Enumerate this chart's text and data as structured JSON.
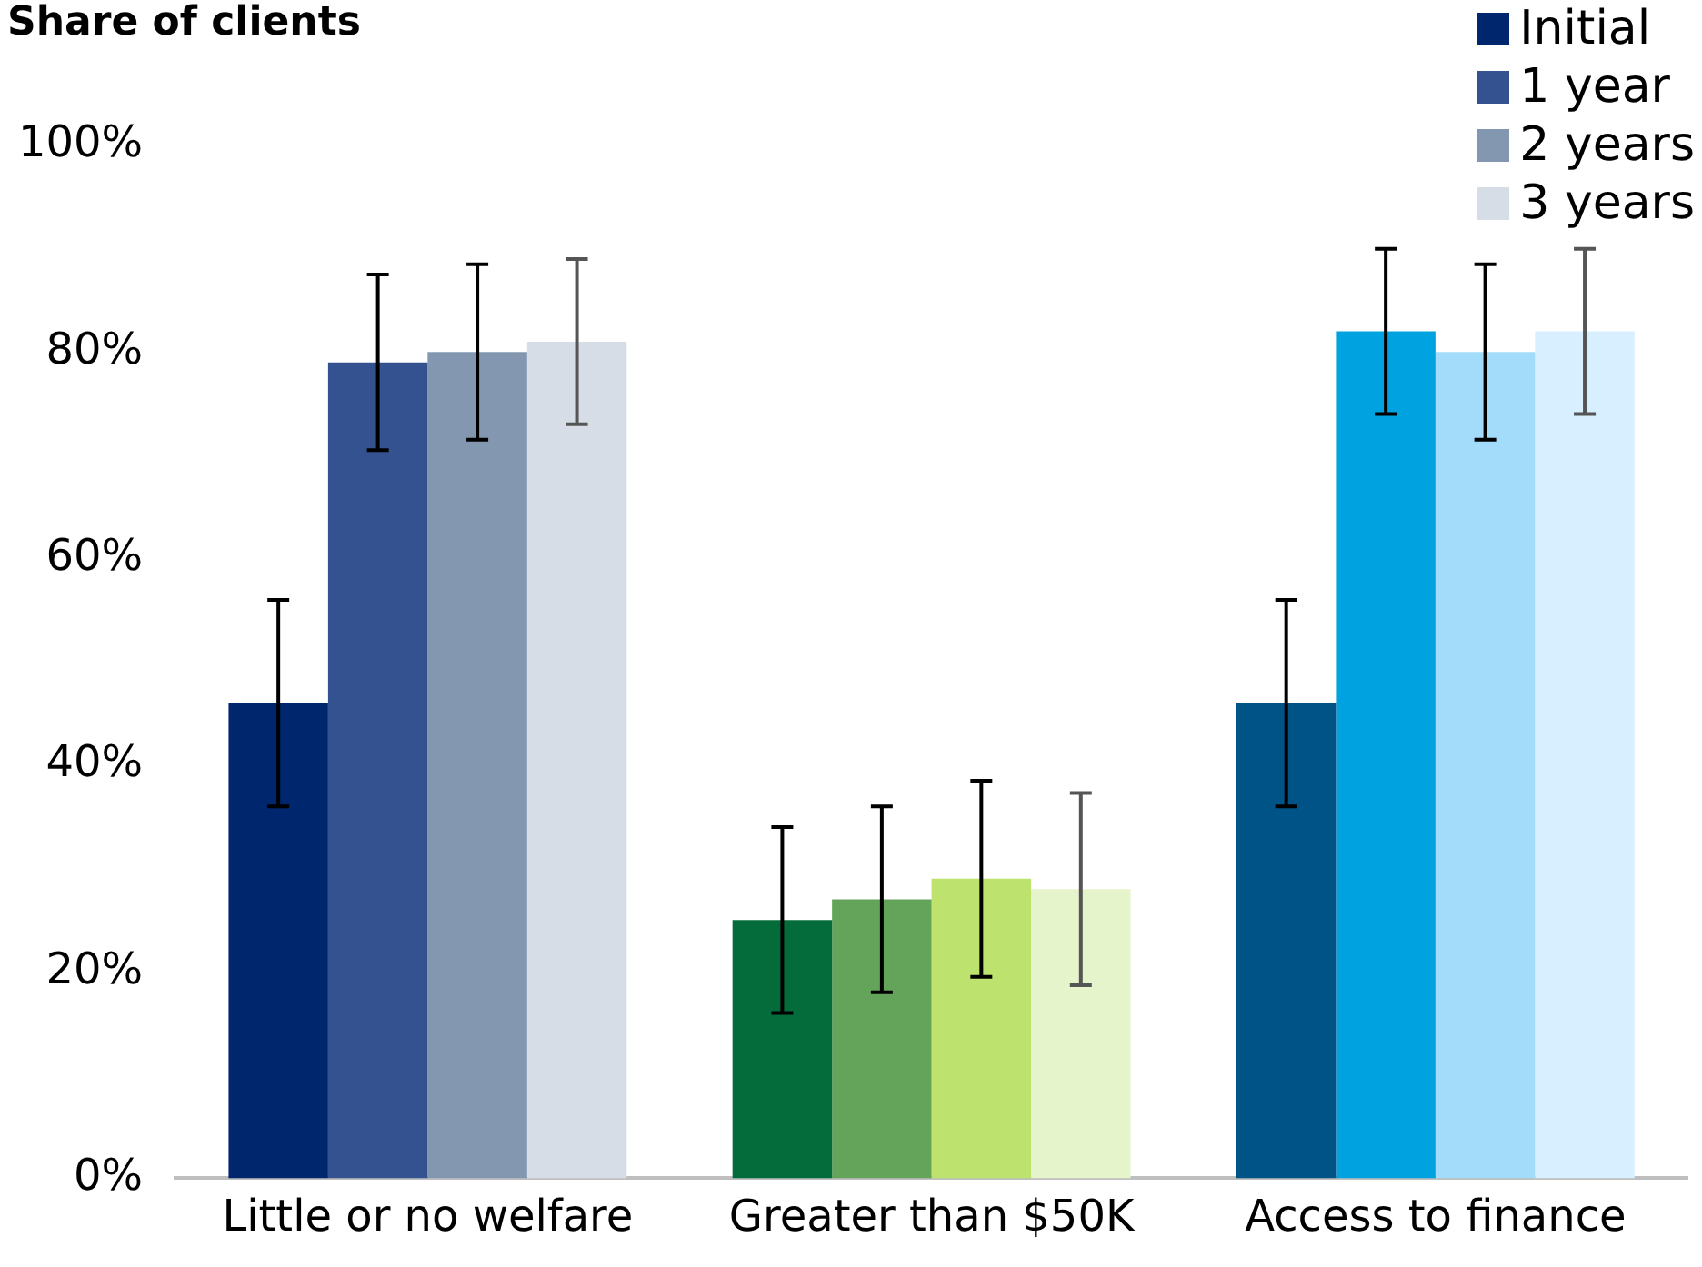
{
  "chart_data": {
    "type": "bar",
    "title": "Share of clients",
    "categories": [
      "Little or no welfare",
      "Greater than $50K",
      "Access to finance"
    ],
    "series": [
      {
        "name": "Initial",
        "color": "#00266e",
        "colors": [
          "#00266e",
          "#046b3a",
          "#005386"
        ],
        "values": [
          46,
          25,
          46
        ],
        "errors": [
          10,
          9,
          10
        ]
      },
      {
        "name": "1 year",
        "color": "#34528f",
        "colors": [
          "#34528f",
          "#63a45a",
          "#00a3e0"
        ],
        "values": [
          79,
          27,
          82
        ],
        "errors": [
          8.5,
          9,
          8
        ]
      },
      {
        "name": "2 years",
        "color": "#8497b0",
        "colors": [
          "#8497b0",
          "#bde36e",
          "#a3dcfb"
        ],
        "values": [
          80,
          29,
          80
        ],
        "errors": [
          8.5,
          9.5,
          8.5
        ]
      },
      {
        "name": "3 years",
        "color": "#d6dde6",
        "colors": [
          "#d6dde6",
          "#e6f4cb",
          "#d7efff"
        ],
        "values": [
          81,
          28,
          82
        ],
        "errors": [
          8,
          9.3,
          8
        ]
      }
    ],
    "ylim": [
      0,
      100
    ],
    "yticks": [
      {
        "value": 0,
        "label": "0%"
      },
      {
        "value": 20,
        "label": "20%"
      },
      {
        "value": 40,
        "label": "40%"
      },
      {
        "value": 60,
        "label": "60%"
      },
      {
        "value": 80,
        "label": "80%"
      },
      {
        "value": 100,
        "label": "100%"
      }
    ],
    "grid": false,
    "legend": "top right"
  }
}
